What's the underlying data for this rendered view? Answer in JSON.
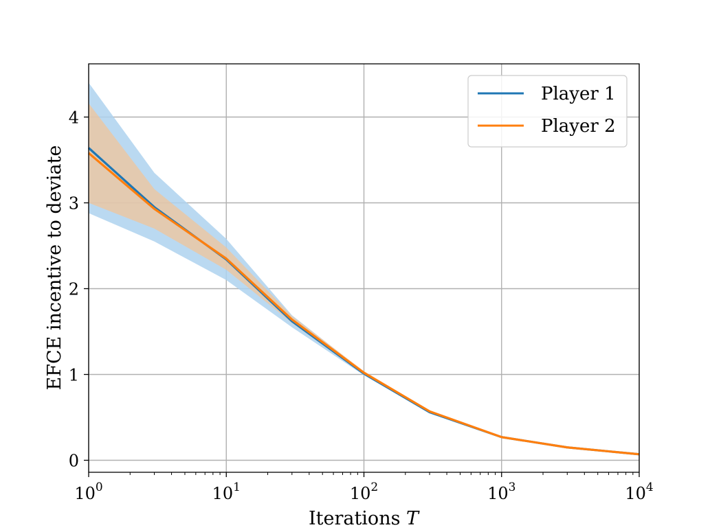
{
  "chart_data": {
    "type": "line",
    "title": "",
    "xlabel": "Iterations",
    "xlabel_var": "T",
    "ylabel": "EFCE incentive to deviate",
    "xscale": "log10",
    "xlim": [
      1,
      10000
    ],
    "ylim": [
      -0.14,
      4.62
    ],
    "x_ticks": [
      {
        "value": 1,
        "base": "10",
        "exp": "0"
      },
      {
        "value": 10,
        "base": "10",
        "exp": "1"
      },
      {
        "value": 100,
        "base": "10",
        "exp": "2"
      },
      {
        "value": 1000,
        "base": "10",
        "exp": "3"
      },
      {
        "value": 10000,
        "base": "10",
        "exp": "4"
      }
    ],
    "y_ticks": [
      {
        "value": 0,
        "label": "0"
      },
      {
        "value": 1,
        "label": "1"
      },
      {
        "value": 2,
        "label": "2"
      },
      {
        "value": 3,
        "label": "3"
      },
      {
        "value": 4,
        "label": "4"
      }
    ],
    "grid": true,
    "legend_position": "top-right",
    "series": [
      {
        "name": "Player 1",
        "color": "#1f77b4",
        "band_color": "#aed2ee",
        "x": [
          1,
          3,
          10,
          30,
          100,
          300,
          1000,
          3000,
          10000
        ],
        "y": [
          3.64,
          2.95,
          2.34,
          1.62,
          1.01,
          0.56,
          0.27,
          0.15,
          0.07
        ],
        "lower": [
          2.88,
          2.55,
          2.1,
          1.55,
          0.99,
          0.55,
          0.27,
          0.15,
          0.07
        ],
        "upper": [
          4.4,
          3.35,
          2.58,
          1.69,
          1.03,
          0.57,
          0.27,
          0.15,
          0.07
        ]
      },
      {
        "name": "Player 2",
        "color": "#ff7f0e",
        "band_color": "#ffbf86",
        "x": [
          1,
          3,
          10,
          30,
          100,
          300,
          1000,
          3000,
          10000
        ],
        "y": [
          3.58,
          2.93,
          2.35,
          1.64,
          1.02,
          0.57,
          0.27,
          0.15,
          0.07
        ],
        "lower": [
          3.0,
          2.7,
          2.22,
          1.6,
          1.0,
          0.56,
          0.27,
          0.15,
          0.07
        ],
        "upper": [
          4.16,
          3.16,
          2.48,
          1.68,
          1.04,
          0.58,
          0.27,
          0.15,
          0.07
        ]
      }
    ]
  }
}
